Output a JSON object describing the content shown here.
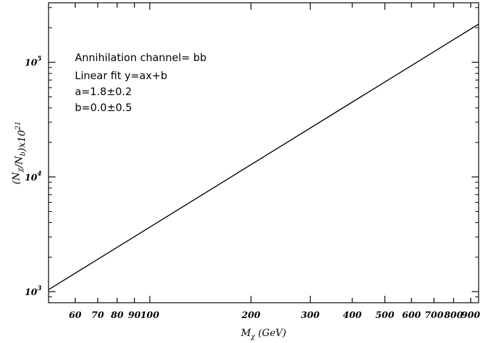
{
  "chart_data": {
    "type": "line",
    "x": [
      50,
      950
    ],
    "y_scale": "log",
    "x_scale": "log",
    "series": [
      {
        "x": [
          50,
          950
        ],
        "y": [
          1040,
          215000
        ]
      }
    ],
    "xlim": [
      50,
      950
    ],
    "ylim": [
      800,
      330000
    ],
    "x_ticks": [
      {
        "value": 60,
        "label": "60"
      },
      {
        "value": 70,
        "label": "70"
      },
      {
        "value": 80,
        "label": "80"
      },
      {
        "value": 90,
        "label": "90"
      },
      {
        "value": 100,
        "label": "100"
      },
      {
        "value": 200,
        "label": "200"
      },
      {
        "value": 300,
        "label": "300"
      },
      {
        "value": 400,
        "label": "400"
      },
      {
        "value": 500,
        "label": "500"
      },
      {
        "value": 600,
        "label": "600"
      },
      {
        "value": 700,
        "label": "700"
      },
      {
        "value": 800,
        "label": "800"
      },
      {
        "value": 900,
        "label": "900"
      }
    ],
    "y_ticks": [
      {
        "value": 1000,
        "base": "10",
        "exp": "3"
      },
      {
        "value": 10000,
        "base": "10",
        "exp": "4"
      },
      {
        "value": 100000,
        "base": "10",
        "exp": "5"
      }
    ],
    "xlabel": {
      "main": "M",
      "sub": "χ",
      "rest": " (GeV)"
    },
    "ylabel": "(N_χ/N_b)x10^21",
    "annotations": [
      "Annihilation channel= bb",
      "Linear fit y=ax+b",
      "a=1.8±0.2",
      "b=0.0±0.5"
    ],
    "grid": false,
    "line_color": "#000000"
  }
}
